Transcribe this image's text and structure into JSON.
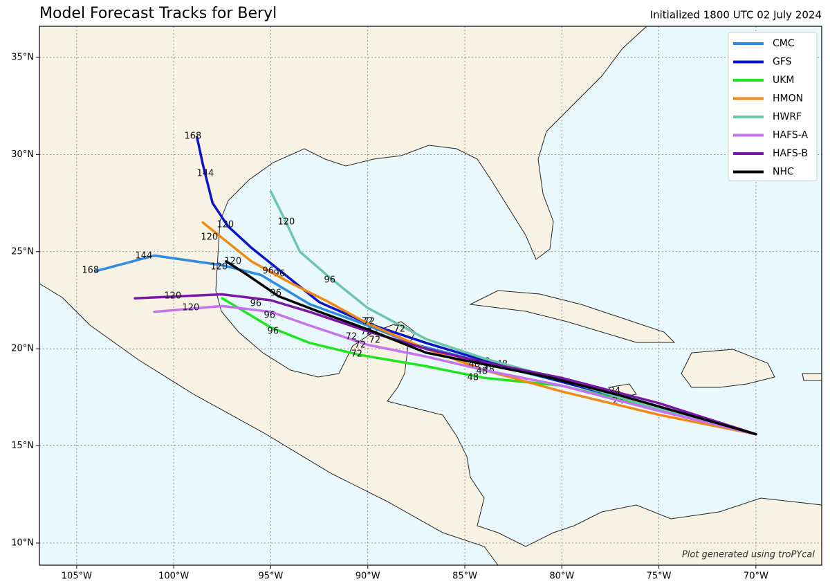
{
  "map": {
    "title": "Model Forecast Tracks for Beryl",
    "subtitle": "Initialized 1800 UTC 02 July 2024",
    "credit": "Plot generated using troPYcal",
    "xlim": [
      -106.92,
      -66.61
    ],
    "ylim": [
      8.86,
      36.6
    ],
    "xticks": [
      {
        "value": -105,
        "label": "105°W"
      },
      {
        "value": -100,
        "label": "100°W"
      },
      {
        "value": -95,
        "label": "95°W"
      },
      {
        "value": -90,
        "label": "90°W"
      },
      {
        "value": -85,
        "label": "85°W"
      },
      {
        "value": -80,
        "label": "80°W"
      },
      {
        "value": -75,
        "label": "75°W"
      },
      {
        "value": -70,
        "label": "70°W"
      }
    ],
    "yticks": [
      {
        "value": 10,
        "label": "10°N"
      },
      {
        "value": 15,
        "label": "15°N"
      },
      {
        "value": 20,
        "label": "20°N"
      },
      {
        "value": 25,
        "label": "25°N"
      },
      {
        "value": 30,
        "label": "30°N"
      },
      {
        "value": 35,
        "label": "35°N"
      }
    ],
    "grid": true,
    "legend": "upper right",
    "tracks": [
      {
        "name": "CMC",
        "color": "#2e8be0",
        "lon": [
          -70,
          -75,
          -80,
          -84,
          -87.5,
          -90,
          -93,
          -95.5,
          -97.5,
          -101,
          -104
        ],
        "lat": [
          15.6,
          16.9,
          18.3,
          19.3,
          20.2,
          21.2,
          22.3,
          23.8,
          24.3,
          24.8,
          24.0
        ],
        "labels": [
          {
            "hour": 48,
            "lon": -84.0,
            "lat": 19.33
          },
          {
            "hour": 72,
            "lon": -90.07,
            "lat": 20.86
          },
          {
            "hour": 120,
            "lon": -97.66,
            "lat": 24.21
          },
          {
            "hour": 144,
            "lon": -101.54,
            "lat": 24.78
          },
          {
            "hour": 168,
            "lon": -104.29,
            "lat": 24.03
          }
        ]
      },
      {
        "name": "GFS",
        "color": "#0a14c8",
        "lon": [
          -70,
          -75,
          -80,
          -84,
          -87,
          -90,
          -92.5,
          -94.5,
          -96,
          -97.2,
          -98.0,
          -98.5,
          -98.8
        ],
        "lat": [
          15.6,
          17.0,
          18.3,
          19.4,
          20.3,
          21.3,
          22.4,
          24.0,
          25.2,
          26.3,
          27.5,
          29.5,
          30.9
        ],
        "labels": [
          {
            "hour": 48,
            "lon": -83.08,
            "lat": 19.19
          },
          {
            "hour": 72,
            "lon": -90.03,
            "lat": 21.4
          },
          {
            "hour": 96,
            "lon": -94.56,
            "lat": 23.85
          },
          {
            "hour": 120,
            "lon": -97.34,
            "lat": 26.38
          },
          {
            "hour": 144,
            "lon": -98.37,
            "lat": 29.02
          },
          {
            "hour": 168,
            "lon": -99.01,
            "lat": 30.94
          }
        ]
      },
      {
        "name": "UKM",
        "color": "#1ee61e",
        "lon": [
          -70,
          -75,
          -80,
          -84,
          -87,
          -90.5,
          -93,
          -95,
          -96.5,
          -97.5
        ],
        "lat": [
          15.6,
          16.9,
          18.1,
          18.5,
          19.1,
          19.7,
          20.3,
          21.1,
          22.0,
          22.6
        ],
        "labels": [
          {
            "hour": 24,
            "lon": -77.1,
            "lat": 17.3
          },
          {
            "hour": 48,
            "lon": -84.58,
            "lat": 18.51
          },
          {
            "hour": 72,
            "lon": -90.57,
            "lat": 19.72
          },
          {
            "hour": 96,
            "lon": -94.88,
            "lat": 20.9
          }
        ]
      },
      {
        "name": "HMON",
        "color": "#f08a14",
        "lon": [
          -70,
          -75,
          -80,
          -84,
          -87,
          -90,
          -92,
          -94,
          -96,
          -98.5
        ],
        "lat": [
          15.6,
          16.6,
          17.8,
          18.9,
          20.0,
          21.3,
          22.4,
          23.4,
          24.5,
          26.5
        ],
        "labels": [
          {
            "hour": 48,
            "lon": -83.76,
            "lat": 18.9
          },
          {
            "hour": 72,
            "lon": -89.93,
            "lat": 21.4
          },
          {
            "hour": 96,
            "lon": -95.13,
            "lat": 24.0
          },
          {
            "hour": 120,
            "lon": -98.16,
            "lat": 25.74
          }
        ]
      },
      {
        "name": "HWRF",
        "color": "#6cc6aa",
        "lon": [
          -70,
          -75,
          -80,
          -84,
          -87,
          -90,
          -92,
          -93.5,
          -94.3,
          -95
        ],
        "lat": [
          15.6,
          16.9,
          18.4,
          19.5,
          20.5,
          22.1,
          23.7,
          25.0,
          26.7,
          28.1
        ],
        "labels": [
          {
            "hour": 72,
            "lon": -88.36,
            "lat": 21.0
          },
          {
            "hour": 96,
            "lon": -91.96,
            "lat": 23.53
          },
          {
            "hour": 120,
            "lon": -94.2,
            "lat": 26.52
          }
        ]
      },
      {
        "name": "HAFS-A",
        "color": "#c472ee",
        "lon": [
          -70,
          -75,
          -80,
          -84,
          -87,
          -90,
          -93,
          -95,
          -97.5,
          -101
        ],
        "lat": [
          15.6,
          16.8,
          18.1,
          18.9,
          19.6,
          20.2,
          21.2,
          21.9,
          22.2,
          21.9
        ],
        "labels": [
          {
            "hour": 48,
            "lon": -84.12,
            "lat": 18.83
          },
          {
            "hour": 72,
            "lon": -90.39,
            "lat": 20.19
          },
          {
            "hour": 96,
            "lon": -95.06,
            "lat": 21.72
          },
          {
            "hour": 120,
            "lon": -99.12,
            "lat": 22.11
          }
        ]
      },
      {
        "name": "HAFS-B",
        "color": "#7a16a8",
        "lon": [
          -70,
          -75,
          -80,
          -84,
          -87,
          -90,
          -93,
          -95,
          -97.5,
          -102
        ],
        "lat": [
          15.6,
          17.2,
          18.5,
          19.3,
          20.0,
          20.9,
          21.9,
          22.5,
          22.8,
          22.6
        ],
        "labels": [
          {
            "hour": 24,
            "lon": -77.27,
            "lat": 17.81
          },
          {
            "hour": 72,
            "lon": -90.85,
            "lat": 20.61
          },
          {
            "hour": 96,
            "lon": -95.77,
            "lat": 22.32
          },
          {
            "hour": 120,
            "lon": -100.05,
            "lat": 22.71
          }
        ]
      },
      {
        "name": "NHC",
        "color": "#000000",
        "lon": [
          -70,
          -73.5,
          -77,
          -80.5,
          -84,
          -87,
          -90,
          -92.5,
          -94.6,
          -96.2,
          -97.3
        ],
        "lat": [
          15.6,
          16.6,
          17.6,
          18.5,
          19.2,
          19.8,
          21.0,
          21.9,
          22.7,
          23.8,
          24.5
        ],
        "labels": [
          {
            "hour": 48,
            "lon": -84.51,
            "lat": 19.19
          },
          {
            "hour": 72,
            "lon": -89.64,
            "lat": 20.43
          },
          {
            "hour": 96,
            "lon": -94.74,
            "lat": 22.86
          },
          {
            "hour": 120,
            "lon": -96.95,
            "lat": 24.49
          }
        ]
      }
    ]
  }
}
